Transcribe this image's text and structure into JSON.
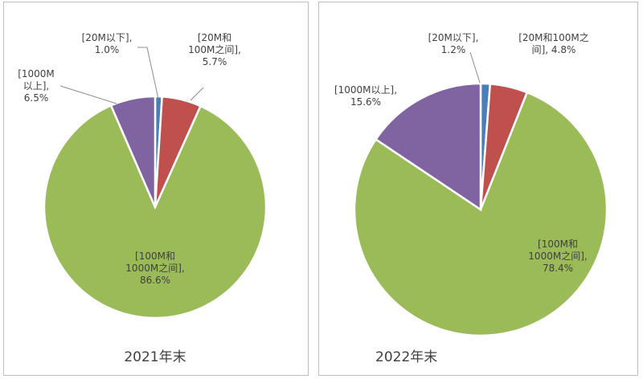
{
  "chart_data": [
    {
      "type": "pie",
      "title": "2021年末",
      "colors": [
        "#4a7ebb",
        "#c0504d",
        "#9bbb59",
        "#8064a2"
      ],
      "slices": [
        {
          "id": "s20",
          "label": "[20M以下],",
          "lines": [
            "[20M以下],",
            "1.0%"
          ],
          "value": 1.0
        },
        {
          "id": "s20_100",
          "label": "[20M和100M之间],",
          "lines": [
            "[20M和",
            "100M之间],",
            "5.7%"
          ],
          "value": 5.7
        },
        {
          "id": "s100_1000",
          "label": "[100M和1000M之间],",
          "lines": [
            "[100M和",
            "1000M之间],",
            "86.6%"
          ],
          "value": 86.6
        },
        {
          "id": "s1000",
          "label": "[1000M以上],",
          "lines": [
            "[1000M",
            "以上],",
            "6.5%"
          ],
          "value": 6.5
        }
      ]
    },
    {
      "type": "pie",
      "title": "2022年末",
      "colors": [
        "#4a7ebb",
        "#c0504d",
        "#9bbb59",
        "#8064a2"
      ],
      "slices": [
        {
          "id": "s20",
          "label": "[20M以下],",
          "lines": [
            "[20M以下],",
            "1.2%"
          ],
          "value": 1.2
        },
        {
          "id": "s20_100",
          "label": "[20M和100M之间],",
          "lines": [
            "[20M和100M之",
            "间], 4.8%"
          ],
          "value": 4.8
        },
        {
          "id": "s100_1000",
          "label": "[100M和1000M之间],",
          "lines": [
            "[100M和",
            "1000M之间],",
            "78.4%"
          ],
          "value": 78.4
        },
        {
          "id": "s1000",
          "label": "[1000M以上],",
          "lines": [
            "[1000M以上],",
            "15.6%"
          ],
          "value": 15.6
        }
      ]
    }
  ]
}
